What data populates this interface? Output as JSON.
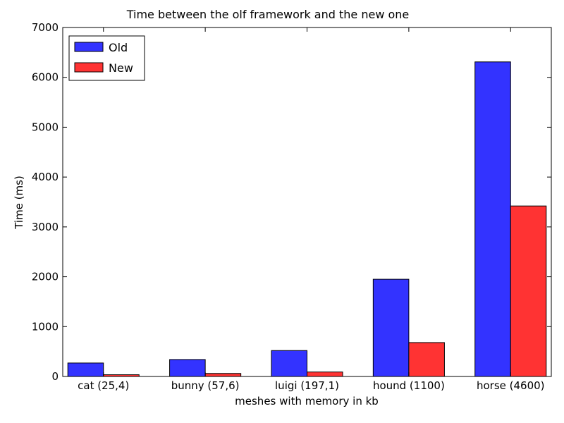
{
  "chart_data": {
    "type": "bar",
    "title": "Time between the olf framework and the new one",
    "xlabel": "meshes with memory in kb",
    "ylabel": "Time (ms)",
    "ylim": [
      0,
      7000
    ],
    "yticks": [
      0,
      1000,
      2000,
      3000,
      4000,
      5000,
      6000,
      7000
    ],
    "grid": false,
    "legend_position": "top-left",
    "categories": [
      "cat (25,4)",
      "bunny (57,6)",
      "luigi (197,1)",
      "hound (1100)",
      "horse (4600)"
    ],
    "series": [
      {
        "name": "Old",
        "color": "#3333ff",
        "values": [
          270,
          340,
          520,
          1950,
          6310
        ]
      },
      {
        "name": "New",
        "color": "#ff3333",
        "values": [
          35,
          60,
          90,
          680,
          3420
        ]
      }
    ]
  }
}
